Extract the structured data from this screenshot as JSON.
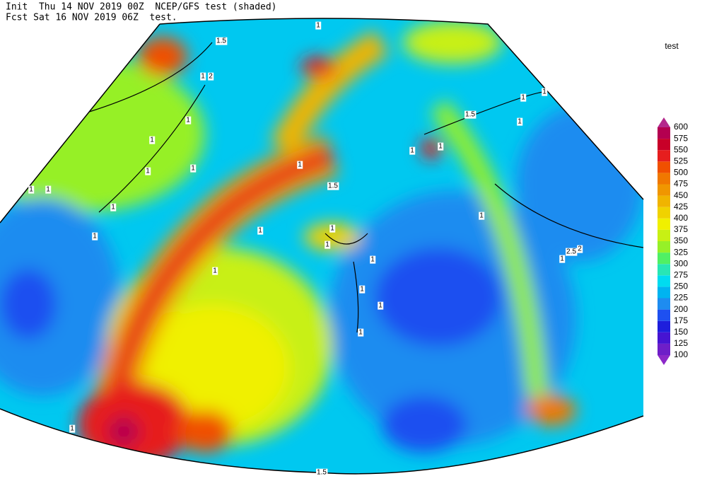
{
  "header": {
    "line1": "Init  Thu 14 NOV 2019 00Z  NCEP/GFS test (shaded)",
    "line2": "Fcst Sat 16 NOV 2019 06Z  test."
  },
  "colorbar": {
    "title": "test",
    "levels": [
      100,
      125,
      150,
      175,
      200,
      225,
      250,
      275,
      300,
      325,
      350,
      375,
      400,
      425,
      450,
      475,
      500,
      525,
      550,
      575,
      600
    ],
    "colors": [
      "#8c28c8",
      "#6e1ec8",
      "#4614d2",
      "#1e1edc",
      "#1e50f0",
      "#1e8cf0",
      "#00b4f0",
      "#00dcf0",
      "#28e6b4",
      "#50f064",
      "#96f028",
      "#c8f014",
      "#f0f000",
      "#f0d200",
      "#f0b400",
      "#f09600",
      "#f07800",
      "#f05000",
      "#e61e1e",
      "#c80028",
      "#b40050",
      "#b4288c"
    ]
  },
  "contour_labels": [
    "1",
    "1.5",
    "1",
    "2",
    "1",
    "1",
    "1",
    "1",
    "1",
    "1",
    "1",
    "1",
    "1",
    "1.5",
    "1",
    "1",
    "1",
    "1",
    "1",
    "1",
    "1.5",
    "1",
    "1",
    "1",
    "1",
    "2.5",
    "2",
    "1",
    "1",
    "1",
    "1",
    "1",
    "1",
    "1.5"
  ]
}
